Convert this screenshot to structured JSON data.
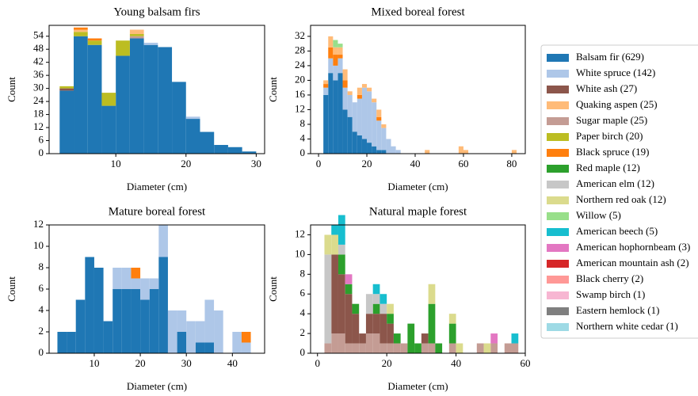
{
  "chart_data": [
    {
      "type": "histogram",
      "title": "Young balsam firs",
      "xlabel": "Diameter (cm)",
      "ylabel": "Count",
      "bins": [
        2,
        4,
        6,
        8,
        10,
        12,
        14,
        16,
        18,
        20,
        22,
        24,
        26,
        28,
        30
      ],
      "xlim": [
        0.5,
        31.2
      ],
      "xticks": [
        10,
        20,
        30
      ],
      "ylim": [
        0,
        59
      ],
      "yticks": [
        0,
        6,
        12,
        18,
        24,
        30,
        36,
        42,
        48,
        54
      ],
      "series": [
        {
          "name": "Balsam fir (629)",
          "values": [
            29,
            54,
            50,
            22,
            45,
            53,
            50,
            49,
            33,
            16,
            10,
            4,
            3,
            1
          ]
        },
        {
          "name": "White spruce (142)",
          "values": [
            0,
            0,
            0,
            0,
            0,
            0,
            1,
            0,
            0,
            1,
            0,
            0,
            0,
            0
          ]
        },
        {
          "name": "White ash (27)",
          "values": [
            1,
            0,
            0,
            0,
            0,
            0,
            0,
            0,
            0,
            0,
            0,
            0,
            0,
            0
          ]
        },
        {
          "name": "Sugar maple (25)",
          "values": [
            0,
            0,
            0,
            0,
            0,
            1,
            0,
            0,
            0,
            0,
            0,
            0,
            0,
            0
          ]
        },
        {
          "name": "Paper birch (20)",
          "values": [
            1,
            2,
            2,
            6,
            7,
            1,
            0,
            0,
            0,
            0,
            0,
            0,
            0,
            0
          ]
        },
        {
          "name": "Quaking aspen (25)",
          "values": [
            0,
            1,
            0,
            0,
            0,
            2,
            0,
            0,
            0,
            0,
            0,
            0,
            0,
            0
          ]
        },
        {
          "name": "Black spruce (19)",
          "values": [
            0,
            1,
            1,
            0,
            0,
            0,
            0,
            0,
            0,
            0,
            0,
            0,
            0,
            0
          ]
        }
      ]
    },
    {
      "type": "histogram",
      "title": "Mixed boreal forest",
      "xlabel": "Diameter (cm)",
      "ylabel": "Count",
      "bins": [
        2,
        4,
        6,
        8,
        10,
        12,
        14,
        16,
        18,
        20,
        22,
        24,
        26,
        28,
        30,
        32,
        34,
        36,
        38,
        40,
        42,
        44,
        46,
        48,
        50,
        52,
        54,
        56,
        58,
        60,
        62,
        64,
        66,
        68,
        70,
        72,
        74,
        76,
        78,
        80,
        82,
        84
      ],
      "xlim": [
        -3.3,
        85.6
      ],
      "xticks": [
        0,
        20,
        40,
        60,
        80
      ],
      "ylim": [
        0,
        35
      ],
      "yticks": [
        0,
        4,
        8,
        12,
        16,
        20,
        24,
        28,
        32
      ],
      "series": [
        {
          "name": "Balsam fir (629)",
          "values": [
            16,
            22,
            20,
            22,
            12,
            10,
            6,
            5,
            4,
            3,
            2,
            1,
            1,
            0,
            0,
            0,
            0,
            0,
            0,
            0,
            0,
            0,
            0,
            0,
            0,
            0,
            0,
            0,
            0,
            0,
            0,
            0,
            0,
            0,
            0,
            0,
            0,
            0,
            0,
            0,
            0
          ]
        },
        {
          "name": "White spruce (142)",
          "values": [
            2,
            4,
            4,
            4,
            6,
            6,
            8,
            10,
            14,
            14,
            12,
            8,
            6,
            4,
            2,
            1,
            0,
            0,
            0,
            0,
            0,
            0,
            0,
            0,
            0,
            0,
            0,
            0,
            0,
            0,
            0,
            0,
            0,
            0,
            0,
            0,
            0,
            0,
            0,
            0,
            0
          ]
        },
        {
          "name": "Black spruce (19)",
          "values": [
            1,
            3,
            3,
            1,
            2,
            0,
            0,
            1,
            0,
            0,
            0,
            1,
            0,
            0,
            0,
            0,
            0,
            0,
            0,
            0,
            0,
            0,
            0,
            0,
            0,
            0,
            0,
            0,
            0,
            0,
            0,
            0,
            0,
            0,
            0,
            0,
            0,
            0,
            0,
            0,
            0
          ]
        },
        {
          "name": "Quaking aspen (25)",
          "values": [
            1,
            3,
            2,
            2,
            3,
            1,
            0,
            2,
            1,
            1,
            1,
            2,
            1,
            0,
            0,
            0,
            0,
            0,
            0,
            0,
            0,
            1,
            0,
            0,
            0,
            0,
            0,
            0,
            2,
            1,
            0,
            0,
            0,
            0,
            0,
            0,
            0,
            0,
            0,
            1,
            0
          ]
        },
        {
          "name": "Willow (5)",
          "values": [
            0,
            0,
            2,
            1,
            0,
            0,
            0,
            0,
            0,
            0,
            0,
            0,
            0,
            0,
            0,
            0,
            0,
            0,
            0,
            0,
            0,
            0,
            0,
            0,
            0,
            0,
            0,
            0,
            0,
            0,
            0,
            0,
            0,
            0,
            0,
            0,
            0,
            0,
            0,
            0,
            0
          ]
        }
      ]
    },
    {
      "type": "histogram",
      "title": "Mature boreal forest",
      "xlabel": "Diameter (cm)",
      "ylabel": "Count",
      "bins": [
        2,
        4,
        6,
        8,
        10,
        12,
        14,
        16,
        18,
        20,
        22,
        24,
        26,
        28,
        30,
        32,
        34,
        36,
        38,
        40,
        42,
        44
      ],
      "xlim": [
        0.2,
        47
      ],
      "xticks": [
        10,
        20,
        30,
        40
      ],
      "ylim": [
        0,
        12
      ],
      "yticks": [
        0,
        2,
        4,
        6,
        8,
        10,
        12
      ],
      "series": [
        {
          "name": "Balsam fir (629)",
          "values": [
            2,
            2,
            5,
            9,
            8,
            3,
            6,
            6,
            6,
            5,
            6,
            9,
            0,
            2,
            0,
            1,
            1,
            0,
            0,
            0,
            0
          ]
        },
        {
          "name": "White spruce (142)",
          "values": [
            0,
            0,
            0,
            0,
            0,
            0,
            2,
            2,
            1,
            2,
            1,
            3,
            4,
            2,
            3,
            2,
            4,
            4,
            0,
            2,
            1
          ]
        },
        {
          "name": "Black spruce (19)",
          "values": [
            0,
            0,
            0,
            0,
            0,
            0,
            0,
            0,
            1,
            0,
            0,
            0,
            0,
            0,
            0,
            0,
            0,
            0,
            0,
            0,
            1
          ]
        }
      ]
    },
    {
      "type": "histogram",
      "title": "Natural maple forest",
      "xlabel": "Diameter (cm)",
      "ylabel": "Count",
      "bins": [
        2,
        4,
        6,
        8,
        10,
        12,
        14,
        16,
        18,
        20,
        22,
        24,
        26,
        28,
        30,
        32,
        34,
        36,
        38,
        40,
        42,
        44,
        46,
        48,
        50,
        52,
        54,
        56,
        58
      ],
      "xlim": [
        -2,
        60
      ],
      "xticks": [
        0,
        20,
        40,
        60
      ],
      "ylim": [
        0,
        13
      ],
      "yticks": [
        0,
        2,
        4,
        6,
        8,
        10,
        12
      ],
      "series": [
        {
          "name": "Sugar maple (25)",
          "values": [
            1,
            2,
            2,
            1,
            1,
            1,
            2,
            2,
            1,
            1,
            1,
            1,
            0,
            0,
            1,
            1,
            0,
            0,
            1,
            0,
            0,
            0,
            1,
            0,
            1,
            0,
            1,
            1
          ]
        },
        {
          "name": "White ash (27)",
          "values": [
            0,
            8,
            6,
            5,
            3,
            1,
            2,
            2,
            3,
            2,
            0,
            0,
            0,
            0,
            1,
            0,
            0,
            0,
            0,
            0,
            0,
            0,
            0,
            0,
            0,
            0,
            0,
            0
          ]
        },
        {
          "name": "Red maple (12)",
          "values": [
            0,
            0,
            2,
            1,
            1,
            0,
            0,
            1,
            0,
            1,
            1,
            0,
            3,
            1,
            0,
            4,
            1,
            0,
            2,
            0,
            0,
            0,
            0,
            0,
            0,
            0,
            0,
            0
          ]
        },
        {
          "name": "American elm (12)",
          "values": [
            9,
            0,
            1,
            0,
            0,
            0,
            2,
            1,
            1,
            0,
            0,
            0,
            0,
            0,
            0,
            0,
            0,
            0,
            0,
            0,
            0,
            0,
            0,
            0,
            0,
            0,
            0,
            0
          ]
        },
        {
          "name": "Northern red oak (12)",
          "values": [
            2,
            2,
            0,
            0,
            0,
            0,
            0,
            0,
            0,
            1,
            0,
            0,
            0,
            0,
            0,
            2,
            0,
            0,
            1,
            1,
            0,
            0,
            0,
            1,
            0,
            0,
            0,
            0
          ]
        },
        {
          "name": "American beech (5)",
          "values": [
            0,
            1,
            3,
            0,
            0,
            0,
            0,
            1,
            1,
            0,
            0,
            0,
            0,
            0,
            0,
            0,
            0,
            0,
            0,
            0,
            0,
            0,
            0,
            0,
            0,
            0,
            0,
            1
          ]
        },
        {
          "name": "American hophornbeam (3)",
          "values": [
            0,
            0,
            0,
            1,
            0,
            0,
            0,
            0,
            0,
            0,
            0,
            0,
            0,
            0,
            0,
            0,
            0,
            0,
            0,
            0,
            0,
            0,
            0,
            0,
            1,
            0,
            0,
            0
          ]
        }
      ]
    }
  ],
  "legend": [
    {
      "name": "Balsam fir (629)",
      "color": "#1f77b4"
    },
    {
      "name": "White spruce (142)",
      "color": "#aec7e8"
    },
    {
      "name": "White ash (27)",
      "color": "#8c564b"
    },
    {
      "name": "Quaking aspen (25)",
      "color": "#ffbb78"
    },
    {
      "name": "Sugar maple (25)",
      "color": "#c49c94"
    },
    {
      "name": "Paper birch (20)",
      "color": "#bcbd22"
    },
    {
      "name": "Black spruce (19)",
      "color": "#ff7f0e"
    },
    {
      "name": "Red maple (12)",
      "color": "#2ca02c"
    },
    {
      "name": "American elm (12)",
      "color": "#c7c7c7"
    },
    {
      "name": "Northern red oak (12)",
      "color": "#dbdb8d"
    },
    {
      "name": "Willow (5)",
      "color": "#98df8a"
    },
    {
      "name": "American beech (5)",
      "color": "#17becf"
    },
    {
      "name": "American hophornbeam (3)",
      "color": "#e377c2"
    },
    {
      "name": "American mountain ash (2)",
      "color": "#d62728"
    },
    {
      "name": "Black cherry (2)",
      "color": "#ff9896"
    },
    {
      "name": "Swamp birch (1)",
      "color": "#f7b6d2"
    },
    {
      "name": "Eastern hemlock (1)",
      "color": "#7f7f7f"
    },
    {
      "name": "Northern white cedar (1)",
      "color": "#9edae5"
    }
  ]
}
